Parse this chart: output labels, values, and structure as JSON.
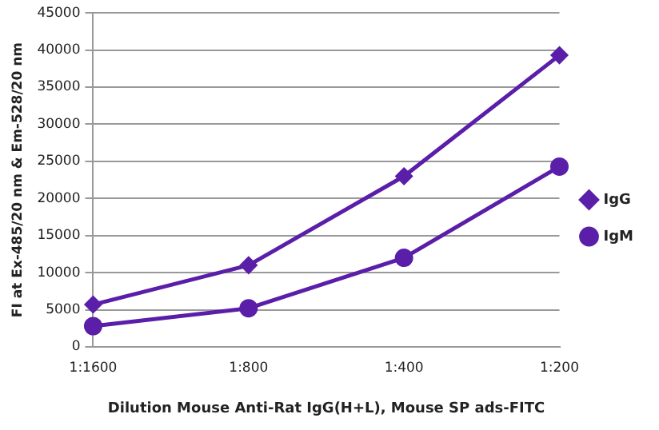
{
  "chart_data": {
    "type": "line",
    "xlabel": "Dilution Mouse Anti-Rat IgG(H+L), Mouse SP ads-FITC",
    "ylabel": "FI at Ex-485/20 nm & Em-528/20 nm",
    "categories": [
      "1:1600",
      "1:800",
      "1:400",
      "1:200"
    ],
    "series": [
      {
        "name": "IgG",
        "color": "#5a1ea8",
        "marker": "diamond",
        "values": [
          5700,
          11000,
          23000,
          39300
        ]
      },
      {
        "name": "IgM",
        "color": "#5a1ea8",
        "marker": "circle",
        "values": [
          2800,
          5200,
          12000,
          24300
        ]
      }
    ],
    "ylim": [
      0,
      45000
    ],
    "yticks": [
      0,
      5000,
      10000,
      15000,
      20000,
      25000,
      30000,
      35000,
      40000,
      45000
    ],
    "grid": "y",
    "legend": "right",
    "line_style": "solid"
  }
}
